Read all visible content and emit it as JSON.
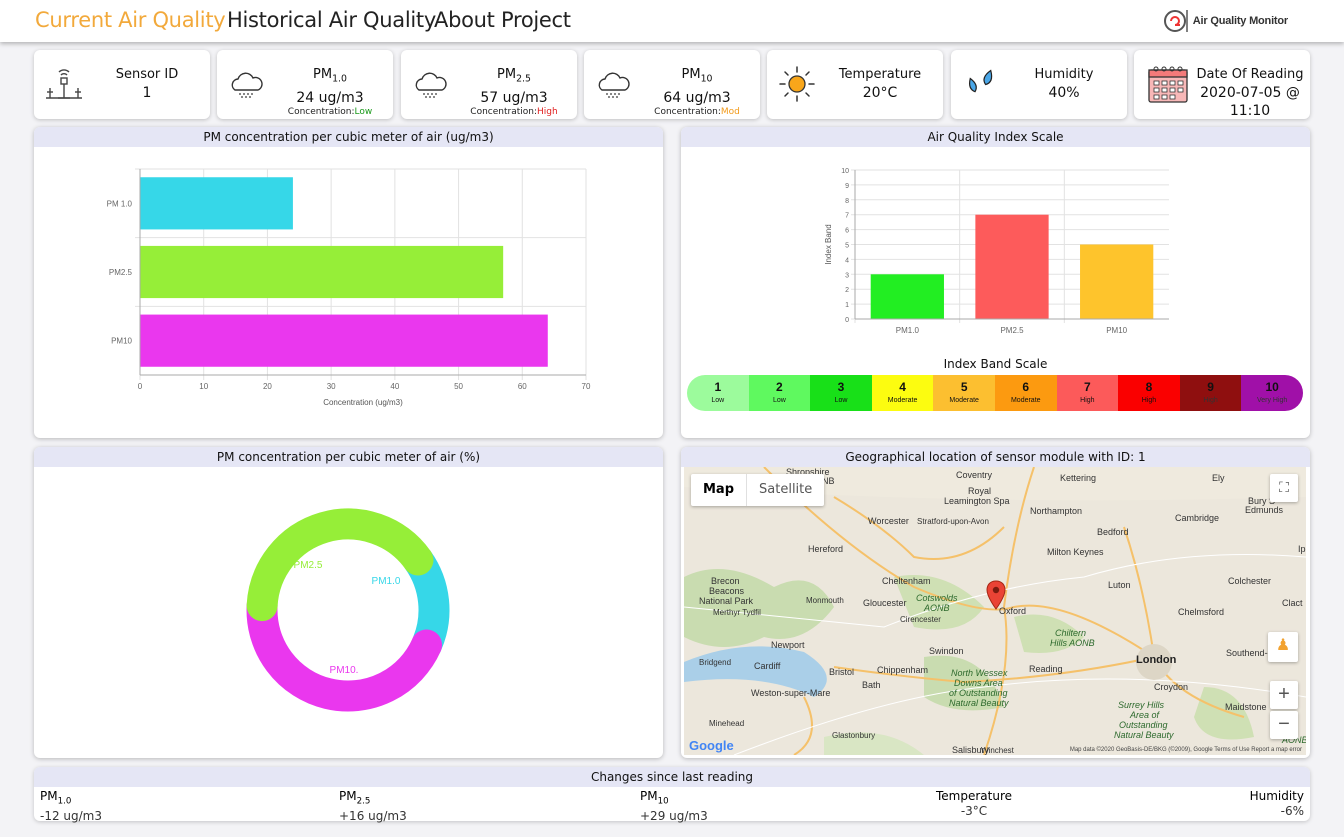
{
  "nav": {
    "current": "Current Air Quality",
    "historical": "Historical Air Quality",
    "about": "About Project",
    "brand": "Air Quality Monitor"
  },
  "cards": {
    "sensor": {
      "title": "Sensor ID",
      "value": "1"
    },
    "pm1": {
      "title_main": "PM",
      "title_sub": "1.0",
      "value": "24 ug/m3",
      "conc_label": "Concentration:",
      "conc_value": "Low",
      "conc_color": "#1a9a1a"
    },
    "pm25": {
      "title_main": "PM",
      "title_sub": "2.5",
      "value": "57 ug/m3",
      "conc_label": "Concentration:",
      "conc_value": "High",
      "conc_color": "#e02020"
    },
    "pm10": {
      "title_main": "PM",
      "title_sub": "10",
      "value": "64 ug/m3",
      "conc_label": "Concentration:",
      "conc_value": "Mod",
      "conc_color": "#f29a1a"
    },
    "temp": {
      "title": "Temperature",
      "value": "20°C"
    },
    "humidity": {
      "title": "Humidity",
      "value": "40%"
    },
    "date": {
      "title": "Date Of Reading",
      "value": "2020-07-05 @",
      "value2": "11:10"
    }
  },
  "panels": {
    "bar_title": "PM concentration per cubic meter of air (ug/m3)",
    "aqi_title": "Air Quality Index Scale",
    "donut_title": "PM concentration per cubic meter of air (%)",
    "map_title": "Geographical location of sensor module with ID: 1",
    "band_title": "Index Band Scale",
    "changes_title": "Changes since last reading"
  },
  "chart_data": [
    {
      "type": "bar",
      "orientation": "horizontal",
      "categories": [
        "PM 1.0",
        "PM2.5",
        "PM10"
      ],
      "values": [
        24,
        57,
        64
      ],
      "colors": [
        "#36d7e8",
        "#96ee38",
        "#ea37ee"
      ],
      "xlabel": "Concentration (ug/m3)",
      "xlim": [
        0,
        70
      ],
      "xticks": [
        0,
        10,
        20,
        30,
        40,
        50,
        60,
        70
      ],
      "grid": true
    },
    {
      "type": "bar",
      "categories": [
        "PM1.0",
        "PM2.5",
        "PM10"
      ],
      "values": [
        3,
        7,
        5
      ],
      "colors": [
        "#22ee22",
        "#fd5b5b",
        "#fec42c"
      ],
      "ylabel": "Index Band",
      "ylim": [
        0,
        10
      ],
      "yticks": [
        0,
        1,
        2,
        3,
        4,
        5,
        6,
        7,
        8,
        9,
        10
      ],
      "grid": true
    },
    {
      "type": "pie",
      "style": "donut",
      "labels": [
        "PM1.0",
        "PM2.5",
        "PM10."
      ],
      "values": [
        24,
        57,
        64
      ],
      "colors": [
        "#36d7e8",
        "#96ee38",
        "#ea37ee"
      ]
    }
  ],
  "band_scale": [
    {
      "num": "1",
      "label": "Low",
      "color": "#9cfb9c"
    },
    {
      "num": "2",
      "label": "Low",
      "color": "#5ff95f"
    },
    {
      "num": "3",
      "label": "Low",
      "color": "#18e018"
    },
    {
      "num": "4",
      "label": "Moderate",
      "color": "#fcfc10"
    },
    {
      "num": "5",
      "label": "Moderate",
      "color": "#fcbf30"
    },
    {
      "num": "6",
      "label": "Moderate",
      "color": "#fc9a10"
    },
    {
      "num": "7",
      "label": "High",
      "color": "#fc5a5a"
    },
    {
      "num": "8",
      "label": "High",
      "color": "#fa0000"
    },
    {
      "num": "9",
      "label": "High",
      "color": "#8f0f0f"
    },
    {
      "num": "10",
      "label": "Very High",
      "color": "#a010a8"
    }
  ],
  "map": {
    "view_map": "Map",
    "view_satellite": "Satellite",
    "footer": "Map data ©2020 GeoBasis-DE/BKG (©2009), Google   Terms of Use   Report a map error",
    "google": "Google",
    "labels": {
      "shropshire": "Shropshire",
      "aonb": "AONB",
      "coventry": "Coventry",
      "kettering": "Kettering",
      "ely": "Ely",
      "royal": "Royal",
      "leamington": "Leamington Spa",
      "bury": "Bury S",
      "edmunds": "Edmunds",
      "worcester": "Worcester",
      "stratford": "Stratford-upon-Avon",
      "northampton": "Northampton",
      "cambridge": "Cambridge",
      "bedford": "Bedford",
      "hereford": "Hereford",
      "milton": "Milton Keynes",
      "ip": "Ip",
      "brecon": "Brecon",
      "beacons": "Beacons",
      "national_park": "National Park",
      "cheltenham": "Cheltenham",
      "luton": "Luton",
      "colchester": "Colchester",
      "monmouth": "Monmouth",
      "gloucester": "Gloucester",
      "cotswolds": "Cotswolds",
      "cotswolds2": "AONB",
      "merthyr": "Merthyr Tydfil",
      "oxford": "Oxford",
      "chelmsford": "Chelmsford",
      "clact": "Clact",
      "cirencester": "Cirencester",
      "chiltern": "Chiltern",
      "chiltern2": "Hills AONB",
      "newport": "Newport",
      "swindon": "Swindon",
      "london": "London",
      "southend": "Southend-o",
      "bridgend": "Bridgend",
      "cardiff": "Cardiff",
      "bristol": "Bristol",
      "chippenham": "Chippenham",
      "north_wessex": "North Wessex",
      "downs": "Downs Area",
      "outstanding": "of Outstanding",
      "natural": "Natural Beauty",
      "reading": "Reading",
      "bath": "Bath",
      "weston": "Weston-super-Mare",
      "croydon": "Croydon",
      "maidstone": "Maidstone",
      "surrey": "Surrey Hills",
      "area_of": "Area of",
      "outstanding2": "Outstanding",
      "natural2": "Natural Beauty",
      "minehead": "Minehead",
      "glastonbury": "Glastonbury",
      "salisbury": "Salisbury",
      "winchester": "Winchest",
      "aonb2": "AONB"
    }
  },
  "changes": {
    "pm1": {
      "k_main": "PM",
      "k_sub": "1.0",
      "v": "-12 ug/m3"
    },
    "pm25": {
      "k_main": "PM",
      "k_sub": "2.5",
      "v": "+16 ug/m3"
    },
    "pm10": {
      "k_main": "PM",
      "k_sub": "10",
      "v": "+29 ug/m3"
    },
    "temp": {
      "k": "Temperature",
      "v": "-3°C"
    },
    "humidity": {
      "k": "Humidity",
      "v": "-6%"
    }
  }
}
